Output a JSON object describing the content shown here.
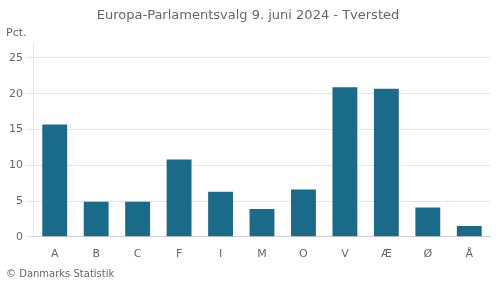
{
  "chart_data": {
    "type": "bar",
    "title": "Europa-Parlamentsvalg 9. juni 2024 - Tversted",
    "categories": [
      "A",
      "B",
      "C",
      "F",
      "I",
      "M",
      "O",
      "V",
      "Æ",
      "Ø",
      "Å"
    ],
    "values": [
      15.7,
      4.9,
      4.9,
      10.8,
      6.3,
      3.9,
      6.6,
      20.9,
      20.7,
      4.1,
      1.5
    ],
    "color": "#1a6b8a",
    "ylabel": "Pct.",
    "footer": "© Danmarks Statistik",
    "ylim": [
      0,
      27
    ],
    "yticks": [
      0,
      5,
      10,
      15,
      20,
      25
    ],
    "grid": true
  }
}
